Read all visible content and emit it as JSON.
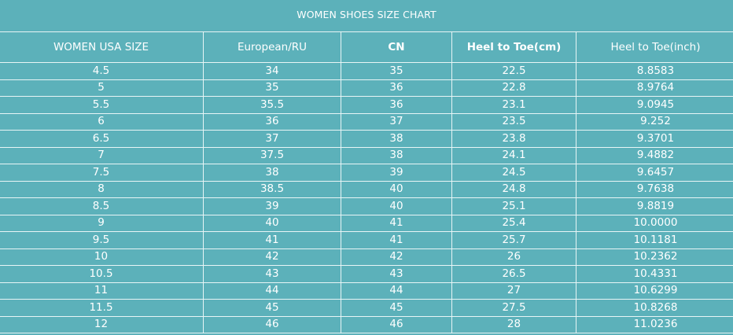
{
  "title": "WOMEN SHOES SIZE CHART",
  "table": {
    "headers": [
      {
        "label": "WOMEN USA SIZE",
        "bold": false
      },
      {
        "label": "European/RU",
        "bold": false
      },
      {
        "label": "CN",
        "bold": true
      },
      {
        "label": "Heel to Toe(cm)",
        "bold": true
      },
      {
        "label": "Heel to Toe(inch)",
        "bold": false
      }
    ],
    "rows": [
      [
        "4.5",
        "34",
        "35",
        "22.5",
        "8.8583"
      ],
      [
        "5",
        "35",
        "36",
        "22.8",
        "8.9764"
      ],
      [
        "5.5",
        "35.5",
        "36",
        "23.1",
        "9.0945"
      ],
      [
        "6",
        "36",
        "37",
        "23.5",
        "9.252"
      ],
      [
        "6.5",
        "37",
        "38",
        "23.8",
        "9.3701"
      ],
      [
        "7",
        "37.5",
        "38",
        "24.1",
        "9.4882"
      ],
      [
        "7.5",
        "38",
        "39",
        "24.5",
        "9.6457"
      ],
      [
        "8",
        "38.5",
        "40",
        "24.8",
        "9.7638"
      ],
      [
        "8.5",
        "39",
        "40",
        "25.1",
        "9.8819"
      ],
      [
        "9",
        "40",
        "41",
        "25.4",
        "10.0000"
      ],
      [
        "9.5",
        "41",
        "41",
        "25.7",
        "10.1181"
      ],
      [
        "10",
        "42",
        "42",
        "26",
        "10.2362"
      ],
      [
        "10.5",
        "43",
        "43",
        "26.5",
        "10.4331"
      ],
      [
        "11",
        "44",
        "44",
        "27",
        "10.6299"
      ],
      [
        "11.5",
        "45",
        "45",
        "27.5",
        "10.8268"
      ],
      [
        "12",
        "46",
        "46",
        "28",
        "11.0236"
      ]
    ]
  },
  "colors": {
    "background": "#5cb1ba",
    "text": "#ffffff",
    "border": "#e8f5f6"
  }
}
